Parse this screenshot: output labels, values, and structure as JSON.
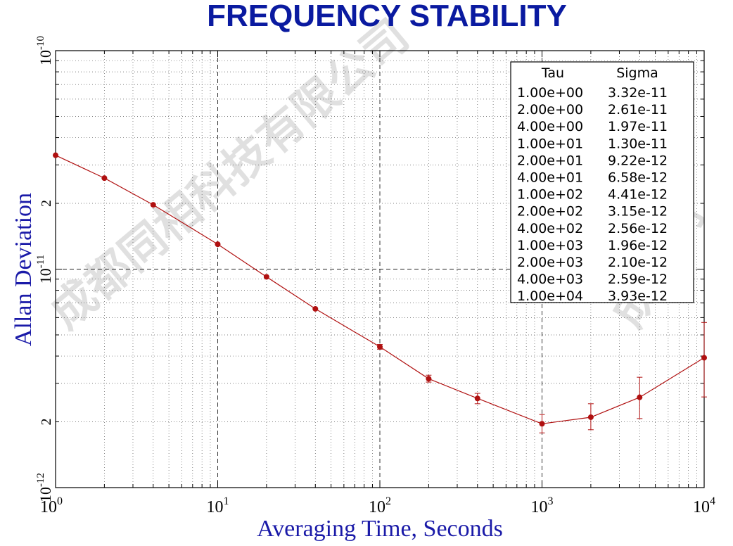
{
  "chart_data": {
    "type": "line",
    "title": "FREQUENCY STABILITY",
    "xlabel": "Averaging Time, Seconds",
    "ylabel": "Allan Deviation",
    "xscale": "log",
    "yscale": "log",
    "xlim": [
      1,
      10000
    ],
    "ylim": [
      1e-12,
      1e-10
    ],
    "grid": true,
    "x_ticks": [
      {
        "value": 1,
        "base": "10",
        "exp": "0"
      },
      {
        "value": 10,
        "base": "10",
        "exp": "1"
      },
      {
        "value": 100,
        "base": "10",
        "exp": "2"
      },
      {
        "value": 1000,
        "base": "10",
        "exp": "3"
      },
      {
        "value": 10000,
        "base": "10",
        "exp": "4"
      }
    ],
    "y_ticks": [
      {
        "value": 1e-12,
        "base": "10",
        "exp": "-12"
      },
      {
        "value": 2e-12,
        "label": "2"
      },
      {
        "value": 1e-11,
        "base": "10",
        "exp": "-11"
      },
      {
        "value": 2e-11,
        "label": "2"
      },
      {
        "value": 1e-10,
        "base": "10",
        "exp": "-10"
      }
    ],
    "series": [
      {
        "name": "Allan Deviation",
        "color": "#b01010",
        "x": [
          1,
          2,
          4,
          10,
          20,
          40,
          100,
          200,
          400,
          1000,
          2000,
          4000,
          10000
        ],
        "y": [
          3.32e-11,
          2.61e-11,
          1.97e-11,
          1.3e-11,
          9.22e-12,
          6.58e-12,
          4.41e-12,
          3.15e-12,
          2.56e-12,
          1.96e-12,
          2.1e-12,
          2.59e-12,
          3.93e-12
        ],
        "err_low": [
          null,
          null,
          null,
          null,
          null,
          null,
          4.3e-12,
          3.04e-12,
          2.42e-12,
          1.78e-12,
          1.84e-12,
          2.07e-12,
          2.6e-12
        ],
        "err_high": [
          null,
          null,
          null,
          null,
          null,
          null,
          4.52e-12,
          3.27e-12,
          2.7e-12,
          2.16e-12,
          2.42e-12,
          3.2e-12,
          5.7e-12
        ]
      }
    ],
    "legend": {
      "placement": "top-right",
      "headers": [
        "Tau",
        "Sigma"
      ],
      "rows": [
        [
          "1.00e+00",
          "3.32e-11"
        ],
        [
          "2.00e+00",
          "2.61e-11"
        ],
        [
          "4.00e+00",
          "1.97e-11"
        ],
        [
          "1.00e+01",
          "1.30e-11"
        ],
        [
          "2.00e+01",
          "9.22e-12"
        ],
        [
          "4.00e+01",
          "6.58e-12"
        ],
        [
          "1.00e+02",
          "4.41e-12"
        ],
        [
          "2.00e+02",
          "3.15e-12"
        ],
        [
          "4.00e+02",
          "2.56e-12"
        ],
        [
          "1.00e+03",
          "1.96e-12"
        ],
        [
          "2.00e+03",
          "2.10e-12"
        ],
        [
          "4.00e+03",
          "2.59e-12"
        ],
        [
          "1.00e+04",
          "3.93e-12"
        ]
      ]
    }
  },
  "watermark": {
    "text_a": "成都同相科技有限公司",
    "text_b": "成都同"
  }
}
